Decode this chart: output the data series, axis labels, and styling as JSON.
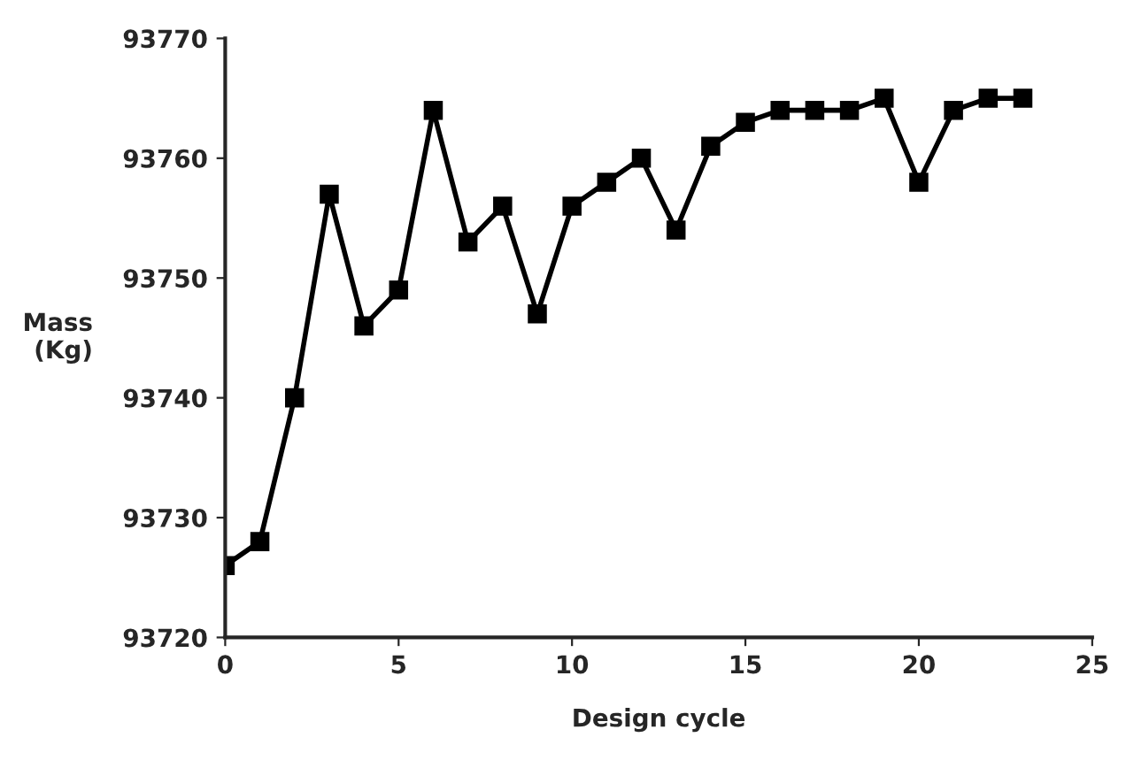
{
  "chart_data": {
    "type": "line",
    "xlabel": "Design cycle",
    "ylabel": "Mass\n(Kg)",
    "x": [
      0,
      1,
      2,
      3,
      4,
      5,
      6,
      7,
      8,
      9,
      10,
      11,
      12,
      13,
      14,
      15,
      16,
      17,
      18,
      19,
      20,
      21,
      22,
      23
    ],
    "series": [
      {
        "color": "#000000",
        "values": [
          93726,
          93728,
          93740,
          93757,
          93746,
          93749,
          93764,
          93753,
          93756,
          93747,
          93756,
          93758,
          93760,
          93754,
          93761,
          93763,
          93764,
          93764,
          93764,
          93765,
          93758,
          93764,
          93765,
          93765
        ]
      }
    ],
    "xlim": [
      0,
      25
    ],
    "ylim": [
      93720,
      93770
    ],
    "xticks": [
      0,
      5,
      10,
      15,
      20,
      25
    ],
    "yticks": [
      93720,
      93730,
      93740,
      93750,
      93760,
      93770
    ],
    "marker": "square",
    "line_style": "solid",
    "grid": false,
    "legend": false
  }
}
